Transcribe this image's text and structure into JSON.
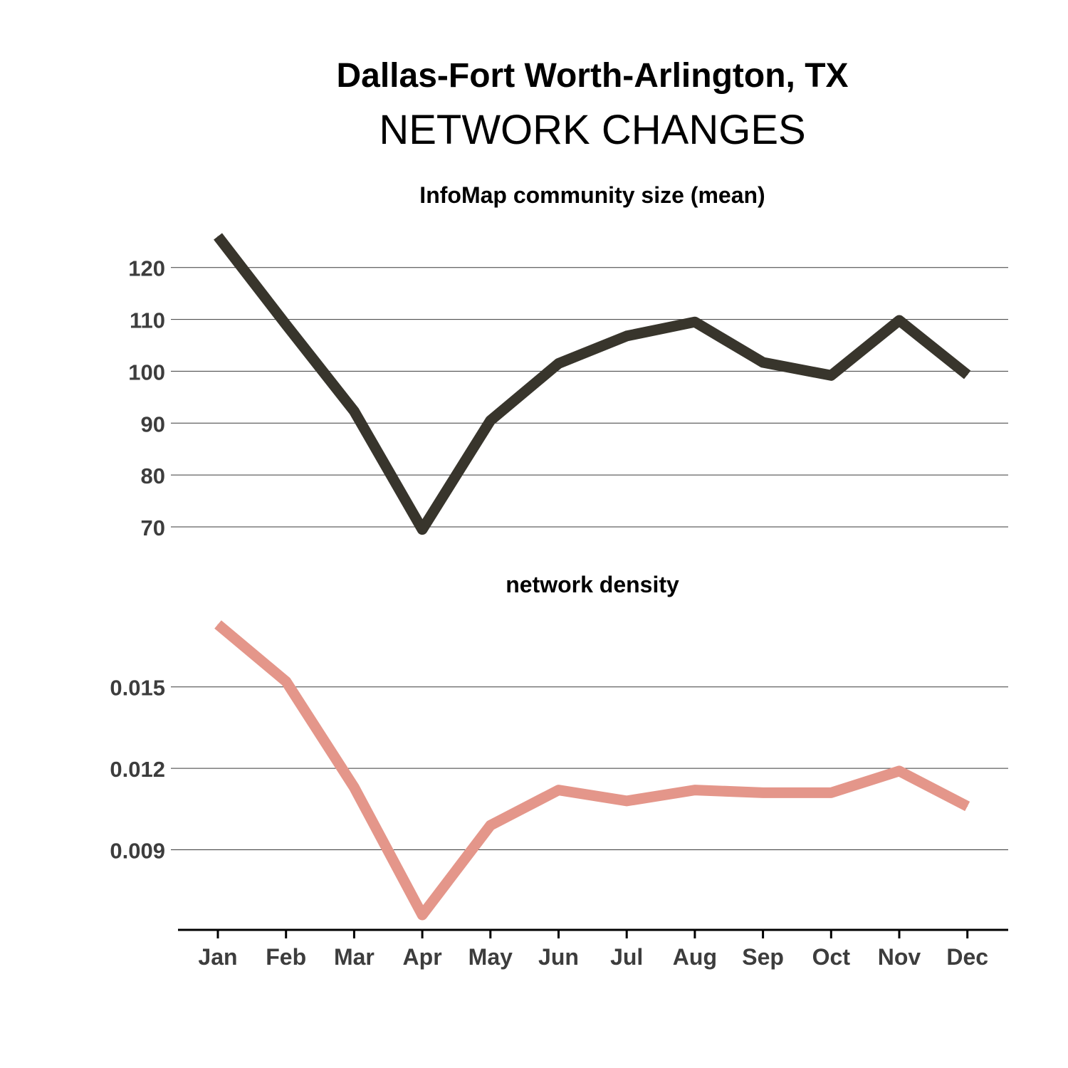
{
  "title": "Dallas-Fort Worth-Arlington, TX",
  "subtitle": "NETWORK CHANGES",
  "colors": {
    "series_top": "#38352c",
    "series_bottom": "#e4968a"
  },
  "chart_data": [
    {
      "type": "line",
      "title": "InfoMap community size (mean)",
      "categories": [
        "Jan",
        "Feb",
        "Mar",
        "Apr",
        "May",
        "Jun",
        "Jul",
        "Aug",
        "Sep",
        "Oct",
        "Nov",
        "Dec"
      ],
      "values": [
        126,
        109,
        92.3,
        69.5,
        90.5,
        101.5,
        106.8,
        109.5,
        101.7,
        99.2,
        109.8,
        99.3
      ],
      "yticks": [
        70,
        80,
        90,
        100,
        110,
        120
      ],
      "ytick_labels": [
        "70",
        "80",
        "90",
        "100",
        "110",
        "120"
      ],
      "ylim": [
        70,
        126
      ],
      "grid": true
    },
    {
      "type": "line",
      "title": "network density",
      "categories": [
        "Jan",
        "Feb",
        "Mar",
        "Apr",
        "May",
        "Jun",
        "Jul",
        "Aug",
        "Sep",
        "Oct",
        "Nov",
        "Dec"
      ],
      "values": [
        0.0173,
        0.0152,
        0.0113,
        0.0066,
        0.0099,
        0.0112,
        0.0108,
        0.0112,
        0.0111,
        0.0111,
        0.0119,
        0.0106
      ],
      "yticks": [
        0.009,
        0.012,
        0.015
      ],
      "ytick_labels": [
        "0.009",
        "0.012",
        "0.015"
      ],
      "ylim": [
        0.0066,
        0.0173
      ],
      "grid": true
    }
  ]
}
